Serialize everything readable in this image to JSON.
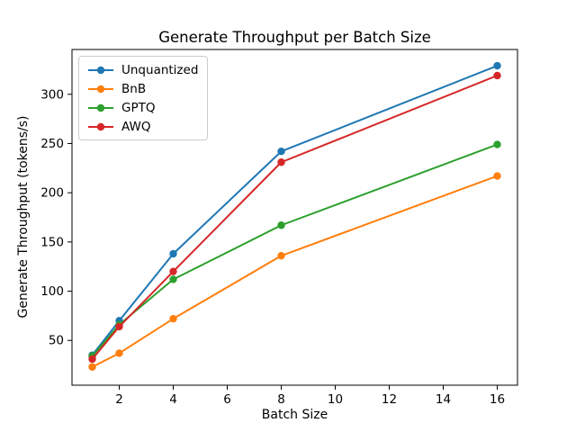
{
  "title": "Generate Throughput per Batch Size",
  "chart_data": {
    "type": "line",
    "title": "Generate Throughput per Batch Size",
    "xlabel": "Batch Size",
    "ylabel": "Generate Throughput (tokens/s)",
    "x": [
      1,
      2,
      4,
      8,
      16
    ],
    "series": [
      {
        "name": "Unquantized",
        "color": "#1f77b4",
        "values": [
          35,
          70,
          138,
          242,
          329
        ]
      },
      {
        "name": "BnB",
        "color": "#ff7f0e",
        "values": [
          23,
          37,
          72,
          136,
          217
        ]
      },
      {
        "name": "GPTQ",
        "color": "#2ca02c",
        "values": [
          34,
          66,
          112,
          167,
          249
        ]
      },
      {
        "name": "AWQ",
        "color": "#d62728",
        "values": [
          31,
          64,
          120,
          231,
          319
        ]
      }
    ],
    "xticks": [
      2,
      4,
      6,
      8,
      10,
      12,
      14,
      16
    ],
    "yticks": [
      50,
      100,
      150,
      200,
      250,
      300
    ],
    "xlim": [
      0.25,
      16.75
    ],
    "ylim": [
      4.5,
      345.5
    ],
    "legend_position": "upper left",
    "grid": false,
    "marker": "circle",
    "axis_color": "#000000",
    "background": "#ffffff"
  }
}
